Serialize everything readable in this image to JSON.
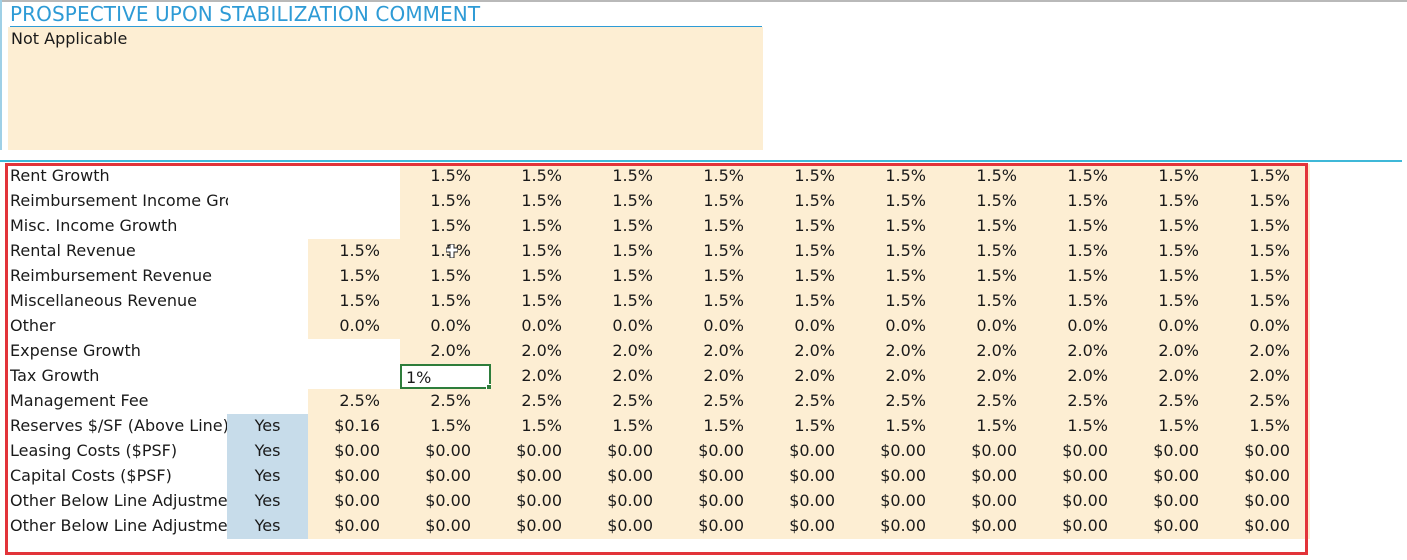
{
  "comment": {
    "title": "PROSPECTIVE UPON STABILIZATION COMMENT",
    "text": "Not Applicable"
  },
  "colors": {
    "accent": "#2e9bd6",
    "input_fill": "#fdeed3",
    "toggle_fill": "#c7dcea",
    "selection_border": "#e2343a",
    "active_cell_border": "#2e7d3b"
  },
  "rows": [
    {
      "label": "Rent Growth",
      "toggle": "",
      "first": "",
      "values": [
        "1.5%",
        "1.5%",
        "1.5%",
        "1.5%",
        "1.5%",
        "1.5%",
        "1.5%",
        "1.5%",
        "1.5%",
        "1.5%"
      ]
    },
    {
      "label": "Reimbursement Income Growth",
      "toggle": "",
      "first": "",
      "values": [
        "1.5%",
        "1.5%",
        "1.5%",
        "1.5%",
        "1.5%",
        "1.5%",
        "1.5%",
        "1.5%",
        "1.5%",
        "1.5%"
      ]
    },
    {
      "label": "Misc. Income Growth",
      "toggle": "",
      "first": "",
      "values": [
        "1.5%",
        "1.5%",
        "1.5%",
        "1.5%",
        "1.5%",
        "1.5%",
        "1.5%",
        "1.5%",
        "1.5%",
        "1.5%"
      ]
    },
    {
      "label": "Rental Revenue",
      "toggle": "",
      "first": "1.5%",
      "values": [
        "1.5%",
        "1.5%",
        "1.5%",
        "1.5%",
        "1.5%",
        "1.5%",
        "1.5%",
        "1.5%",
        "1.5%",
        "1.5%"
      ]
    },
    {
      "label": "Reimbursement Revenue",
      "toggle": "",
      "first": "1.5%",
      "values": [
        "1.5%",
        "1.5%",
        "1.5%",
        "1.5%",
        "1.5%",
        "1.5%",
        "1.5%",
        "1.5%",
        "1.5%",
        "1.5%"
      ]
    },
    {
      "label": "Miscellaneous Revenue",
      "toggle": "",
      "first": "1.5%",
      "values": [
        "1.5%",
        "1.5%",
        "1.5%",
        "1.5%",
        "1.5%",
        "1.5%",
        "1.5%",
        "1.5%",
        "1.5%",
        "1.5%"
      ]
    },
    {
      "label": "Other",
      "toggle": "",
      "first": "0.0%",
      "values": [
        "0.0%",
        "0.0%",
        "0.0%",
        "0.0%",
        "0.0%",
        "0.0%",
        "0.0%",
        "0.0%",
        "0.0%",
        "0.0%"
      ]
    },
    {
      "label": "Expense Growth",
      "toggle": "",
      "first": "",
      "values": [
        "2.0%",
        "2.0%",
        "2.0%",
        "2.0%",
        "2.0%",
        "2.0%",
        "2.0%",
        "2.0%",
        "2.0%",
        "2.0%"
      ]
    },
    {
      "label": "Tax Growth",
      "toggle": "",
      "first": "",
      "values": [
        "1%",
        "2.0%",
        "2.0%",
        "2.0%",
        "2.0%",
        "2.0%",
        "2.0%",
        "2.0%",
        "2.0%",
        "2.0%"
      ],
      "active": 0
    },
    {
      "label": "Management Fee",
      "toggle": "",
      "first": "2.5%",
      "values": [
        "2.5%",
        "2.5%",
        "2.5%",
        "2.5%",
        "2.5%",
        "2.5%",
        "2.5%",
        "2.5%",
        "2.5%",
        "2.5%"
      ]
    },
    {
      "label": "Reserves $/SF (Above Line)",
      "toggle": "Yes",
      "first": "$0.16",
      "values": [
        "1.5%",
        "1.5%",
        "1.5%",
        "1.5%",
        "1.5%",
        "1.5%",
        "1.5%",
        "1.5%",
        "1.5%",
        "1.5%"
      ]
    },
    {
      "label": "Leasing Costs ($PSF)",
      "toggle": "Yes",
      "first": "$0.00",
      "values": [
        "$0.00",
        "$0.00",
        "$0.00",
        "$0.00",
        "$0.00",
        "$0.00",
        "$0.00",
        "$0.00",
        "$0.00",
        "$0.00"
      ]
    },
    {
      "label": "Capital Costs ($PSF)",
      "toggle": "Yes",
      "first": "$0.00",
      "values": [
        "$0.00",
        "$0.00",
        "$0.00",
        "$0.00",
        "$0.00",
        "$0.00",
        "$0.00",
        "$0.00",
        "$0.00",
        "$0.00"
      ]
    },
    {
      "label": "Other Below Line Adjustmen",
      "toggle": "Yes",
      "first": "$0.00",
      "values": [
        "$0.00",
        "$0.00",
        "$0.00",
        "$0.00",
        "$0.00",
        "$0.00",
        "$0.00",
        "$0.00",
        "$0.00",
        "$0.00"
      ]
    },
    {
      "label": "Other Below Line Adjustmen",
      "toggle": "Yes",
      "first": "$0.00",
      "values": [
        "$0.00",
        "$0.00",
        "$0.00",
        "$0.00",
        "$0.00",
        "$0.00",
        "$0.00",
        "$0.00",
        "$0.00",
        "$0.00"
      ]
    }
  ]
}
